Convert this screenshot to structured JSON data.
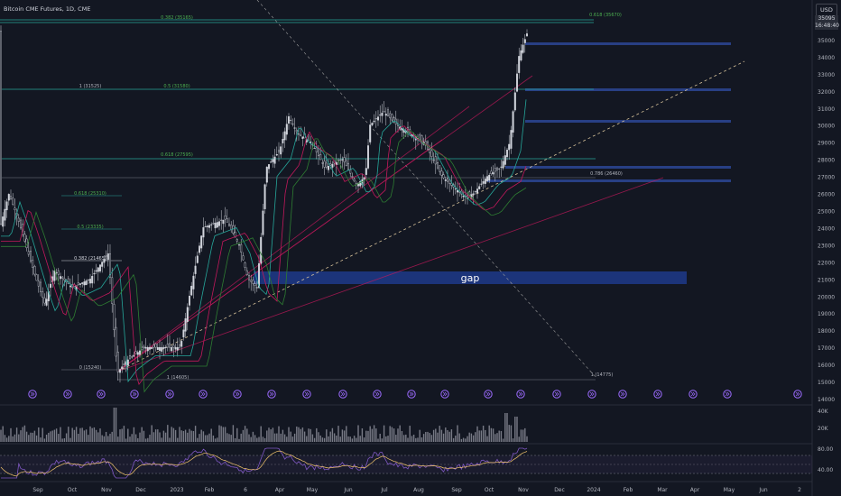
{
  "header": {
    "title": "Bitcoin CME Futures, 1D, CME",
    "currency": "USD",
    "last_price": "35095",
    "countdown": "16:48:40"
  },
  "colors": {
    "background": "#131722",
    "up": "#d1d4dc",
    "down": "#d1d4dc",
    "fib_line": "#26a69a",
    "fib_label": "#4caf50",
    "zone_fill": "#1e3a8a",
    "trend_red": "#c2185b",
    "trend_white": "#9e9e9e",
    "rsi_line": "#7e57c2",
    "rsi_ma": "#f0c36c"
  },
  "price_axis": {
    "ticks": [
      "35000",
      "34000",
      "33000",
      "32000",
      "31000",
      "30000",
      "29000",
      "28000",
      "27000",
      "26000",
      "25000",
      "24000",
      "23000",
      "22000",
      "21000",
      "20000",
      "19000",
      "18000",
      "17000",
      "16000",
      "15000",
      "14000"
    ]
  },
  "volume_axis": {
    "ticks": [
      "40K",
      "20K"
    ]
  },
  "rsi_axis": {
    "ticks": [
      "80.00",
      "40.00"
    ]
  },
  "time_axis": {
    "ticks": [
      "Sep",
      "Oct",
      "Nov",
      "Dec",
      "2023",
      "Feb",
      "6",
      "Apr",
      "May",
      "Jun",
      "Jul",
      "Aug",
      "Sep",
      "Oct",
      "Nov",
      "Dec",
      "2024",
      "Feb",
      "Mar",
      "Apr",
      "May",
      "Jun",
      "2"
    ]
  },
  "fib_labels": {
    "f0382_top": "0.382 (35165)",
    "f0618_top": "0.618 (35670)",
    "f1_mid": "1 (31525)",
    "f05_mid": "0.5 (31580)",
    "f0618_mid": "0.618 (27595)",
    "f0786": "0.786 (26460)",
    "f0618_left": "0.618 (25310)",
    "f05_left": "0.5 (23335)",
    "f0382_left": "0.382 (21465)",
    "f0_left": "0 (15240)",
    "f1_bottom": "1 (14605)",
    "f1_right": "1 (14775)"
  },
  "annotations": {
    "gap": "gap"
  },
  "events_row": {
    "icon": "earnings-icon",
    "count": 22
  }
}
